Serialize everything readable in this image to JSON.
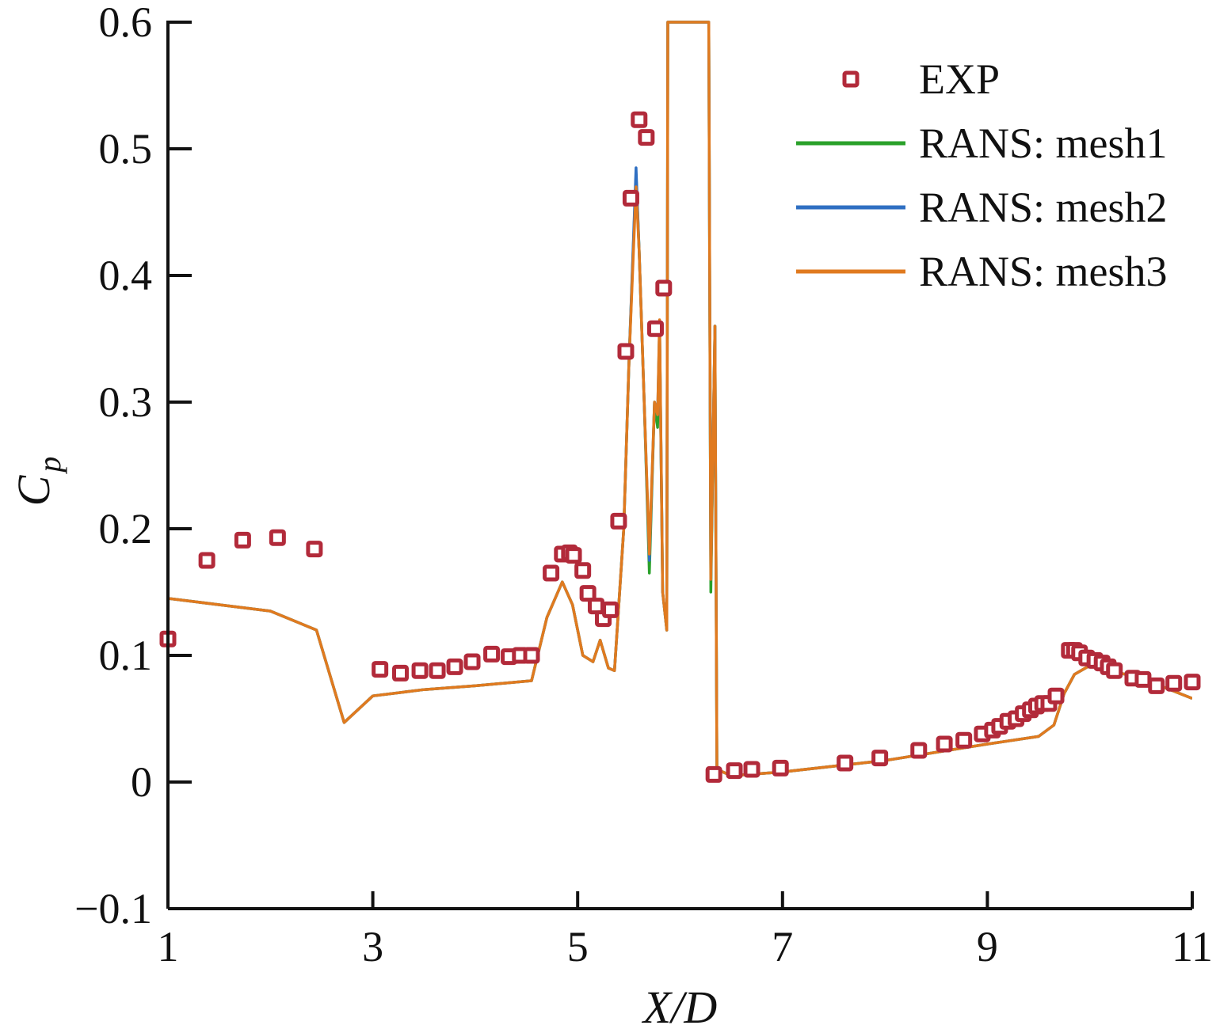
{
  "chart_data": {
    "type": "line",
    "xlabel": "X/D",
    "ylabel": "C",
    "ylabel_sub": "p",
    "xlim": [
      1,
      11
    ],
    "ylim": [
      -0.1,
      0.6
    ],
    "grid": false,
    "legend_position": "top-right",
    "x_ticks": [
      1,
      3,
      5,
      7,
      9,
      11
    ],
    "x_tick_labels": [
      "1",
      "3",
      "5",
      "7",
      "9",
      "11"
    ],
    "y_ticks": [
      -0.1,
      0,
      0.1,
      0.2,
      0.3,
      0.4,
      0.5,
      0.6
    ],
    "y_tick_labels": [
      "−0.1",
      "0",
      "0.1",
      "0.2",
      "0.3",
      "0.4",
      "0.5",
      "0.6"
    ],
    "colors": {
      "exp": "#b22a3a",
      "mesh1": "#2aa12a",
      "mesh2": "#2f6fc2",
      "mesh3": "#e07a1f",
      "axis": "#111111"
    },
    "series": [
      {
        "name": "EXP",
        "kind": "markers",
        "points": [
          [
            1.0,
            0.113
          ],
          [
            1.38,
            0.175
          ],
          [
            1.73,
            0.191
          ],
          [
            2.07,
            0.193
          ],
          [
            2.43,
            0.184
          ],
          [
            3.07,
            0.089
          ],
          [
            3.27,
            0.086
          ],
          [
            3.46,
            0.088
          ],
          [
            3.63,
            0.088
          ],
          [
            3.8,
            0.091
          ],
          [
            3.97,
            0.095
          ],
          [
            4.16,
            0.101
          ],
          [
            4.33,
            0.099
          ],
          [
            4.44,
            0.1
          ],
          [
            4.55,
            0.1
          ],
          [
            4.74,
            0.165
          ],
          [
            4.85,
            0.18
          ],
          [
            4.92,
            0.181
          ],
          [
            4.96,
            0.179
          ],
          [
            5.05,
            0.167
          ],
          [
            5.1,
            0.149
          ],
          [
            5.18,
            0.139
          ],
          [
            5.25,
            0.129
          ],
          [
            5.32,
            0.136
          ],
          [
            5.4,
            0.206
          ],
          [
            5.47,
            0.34
          ],
          [
            5.52,
            0.461
          ],
          [
            5.6,
            0.523
          ],
          [
            5.67,
            0.509
          ],
          [
            5.76,
            0.358
          ],
          [
            5.84,
            0.39
          ],
          [
            6.33,
            0.006
          ],
          [
            6.53,
            0.009
          ],
          [
            6.7,
            0.01
          ],
          [
            6.98,
            0.011
          ],
          [
            7.61,
            0.015
          ],
          [
            7.95,
            0.019
          ],
          [
            8.33,
            0.025
          ],
          [
            8.58,
            0.03
          ],
          [
            8.77,
            0.033
          ],
          [
            8.95,
            0.038
          ],
          [
            9.05,
            0.041
          ],
          [
            9.12,
            0.044
          ],
          [
            9.2,
            0.048
          ],
          [
            9.28,
            0.05
          ],
          [
            9.35,
            0.054
          ],
          [
            9.42,
            0.057
          ],
          [
            9.48,
            0.06
          ],
          [
            9.54,
            0.062
          ],
          [
            9.6,
            0.062
          ],
          [
            9.67,
            0.068
          ],
          [
            9.8,
            0.104
          ],
          [
            9.85,
            0.104
          ],
          [
            9.9,
            0.102
          ],
          [
            9.97,
            0.098
          ],
          [
            10.05,
            0.096
          ],
          [
            10.12,
            0.094
          ],
          [
            10.18,
            0.091
          ],
          [
            10.24,
            0.088
          ],
          [
            10.42,
            0.082
          ],
          [
            10.52,
            0.081
          ],
          [
            10.65,
            0.076
          ],
          [
            10.82,
            0.078
          ],
          [
            11.0,
            0.079
          ]
        ]
      },
      {
        "name": "RANS: mesh1",
        "kind": "line",
        "points": [
          [
            1.0,
            0.145
          ],
          [
            2.0,
            0.135
          ],
          [
            2.45,
            0.12
          ],
          [
            2.72,
            0.047
          ],
          [
            3.0,
            0.068
          ],
          [
            3.5,
            0.073
          ],
          [
            4.0,
            0.076
          ],
          [
            4.55,
            0.08
          ],
          [
            4.7,
            0.13
          ],
          [
            4.85,
            0.158
          ],
          [
            4.95,
            0.14
          ],
          [
            5.05,
            0.1
          ],
          [
            5.15,
            0.095
          ],
          [
            5.22,
            0.112
          ],
          [
            5.3,
            0.09
          ],
          [
            5.36,
            0.088
          ],
          [
            5.45,
            0.2
          ],
          [
            5.5,
            0.33
          ],
          [
            5.57,
            0.48
          ],
          [
            5.6,
            0.42
          ],
          [
            5.65,
            0.3
          ],
          [
            5.7,
            0.165
          ],
          [
            5.75,
            0.3
          ],
          [
            5.78,
            0.28
          ],
          [
            5.8,
            0.36
          ],
          [
            5.83,
            0.15
          ],
          [
            5.87,
            0.12
          ],
          [
            5.88,
            0.6
          ],
          [
            5.9,
            0.6
          ],
          [
            6.28,
            0.6
          ],
          [
            6.3,
            0.15
          ],
          [
            6.34,
            0.36
          ],
          [
            6.36,
            0.01
          ],
          [
            6.5,
            0.005
          ],
          [
            7.0,
            0.008
          ],
          [
            8.0,
            0.017
          ],
          [
            9.0,
            0.03
          ],
          [
            9.5,
            0.036
          ],
          [
            9.65,
            0.045
          ],
          [
            9.75,
            0.07
          ],
          [
            9.85,
            0.085
          ],
          [
            10.0,
            0.092
          ],
          [
            10.5,
            0.082
          ],
          [
            11.0,
            0.066
          ]
        ]
      },
      {
        "name": "RANS: mesh2",
        "kind": "line",
        "points": [
          [
            1.0,
            0.145
          ],
          [
            2.0,
            0.135
          ],
          [
            2.45,
            0.12
          ],
          [
            2.72,
            0.047
          ],
          [
            3.0,
            0.068
          ],
          [
            3.5,
            0.073
          ],
          [
            4.0,
            0.076
          ],
          [
            4.55,
            0.08
          ],
          [
            4.7,
            0.13
          ],
          [
            4.85,
            0.158
          ],
          [
            4.95,
            0.14
          ],
          [
            5.05,
            0.1
          ],
          [
            5.15,
            0.095
          ],
          [
            5.22,
            0.112
          ],
          [
            5.3,
            0.09
          ],
          [
            5.36,
            0.088
          ],
          [
            5.45,
            0.2
          ],
          [
            5.5,
            0.33
          ],
          [
            5.57,
            0.485
          ],
          [
            5.6,
            0.42
          ],
          [
            5.65,
            0.3
          ],
          [
            5.7,
            0.175
          ],
          [
            5.75,
            0.3
          ],
          [
            5.78,
            0.29
          ],
          [
            5.8,
            0.36
          ],
          [
            5.83,
            0.15
          ],
          [
            5.87,
            0.12
          ],
          [
            5.88,
            0.6
          ],
          [
            5.9,
            0.6
          ],
          [
            6.28,
            0.6
          ],
          [
            6.3,
            0.16
          ],
          [
            6.34,
            0.36
          ],
          [
            6.36,
            0.01
          ],
          [
            6.5,
            0.005
          ],
          [
            7.0,
            0.008
          ],
          [
            8.0,
            0.017
          ],
          [
            9.0,
            0.03
          ],
          [
            9.5,
            0.036
          ],
          [
            9.65,
            0.045
          ],
          [
            9.75,
            0.07
          ],
          [
            9.85,
            0.085
          ],
          [
            10.0,
            0.092
          ],
          [
            10.5,
            0.082
          ],
          [
            11.0,
            0.066
          ]
        ]
      },
      {
        "name": "RANS: mesh3",
        "kind": "line",
        "points": [
          [
            1.0,
            0.145
          ],
          [
            2.0,
            0.135
          ],
          [
            2.45,
            0.12
          ],
          [
            2.72,
            0.047
          ],
          [
            3.0,
            0.068
          ],
          [
            3.5,
            0.073
          ],
          [
            4.0,
            0.076
          ],
          [
            4.55,
            0.08
          ],
          [
            4.7,
            0.13
          ],
          [
            4.85,
            0.158
          ],
          [
            4.95,
            0.14
          ],
          [
            5.05,
            0.1
          ],
          [
            5.15,
            0.095
          ],
          [
            5.22,
            0.112
          ],
          [
            5.3,
            0.09
          ],
          [
            5.36,
            0.088
          ],
          [
            5.45,
            0.2
          ],
          [
            5.5,
            0.33
          ],
          [
            5.57,
            0.47
          ],
          [
            5.6,
            0.42
          ],
          [
            5.65,
            0.3
          ],
          [
            5.7,
            0.18
          ],
          [
            5.75,
            0.3
          ],
          [
            5.78,
            0.29
          ],
          [
            5.8,
            0.365
          ],
          [
            5.83,
            0.15
          ],
          [
            5.87,
            0.12
          ],
          [
            5.88,
            0.6
          ],
          [
            5.9,
            0.6
          ],
          [
            6.28,
            0.6
          ],
          [
            6.3,
            0.16
          ],
          [
            6.34,
            0.36
          ],
          [
            6.36,
            0.01
          ],
          [
            6.5,
            0.005
          ],
          [
            7.0,
            0.008
          ],
          [
            8.0,
            0.017
          ],
          [
            9.0,
            0.03
          ],
          [
            9.5,
            0.036
          ],
          [
            9.65,
            0.045
          ],
          [
            9.75,
            0.07
          ],
          [
            9.85,
            0.085
          ],
          [
            10.0,
            0.092
          ],
          [
            10.5,
            0.082
          ],
          [
            11.0,
            0.066
          ]
        ]
      }
    ]
  }
}
